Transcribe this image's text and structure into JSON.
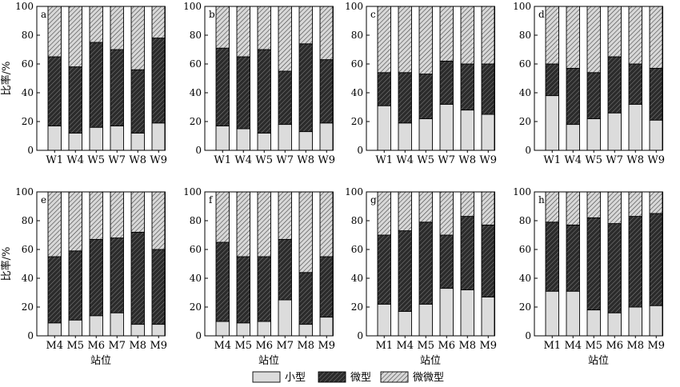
{
  "colors": {
    "small": "#dcdcdc",
    "micro": "#2b2b2b",
    "pico": "#b8b8b8",
    "axis": "#000000"
  },
  "legend": {
    "placement": "bottom-center",
    "items": [
      {
        "key": "small",
        "label": "小型"
      },
      {
        "key": "micro",
        "label": "微型"
      },
      {
        "key": "pico",
        "label": "微微型"
      }
    ]
  },
  "ylabel": "比率/%",
  "xlabel": "站位",
  "chart_data": [
    {
      "type": "bar",
      "stacked": true,
      "panel_label": "a",
      "ylim": [
        0,
        100
      ],
      "yticks": [
        0,
        20,
        40,
        60,
        80,
        100
      ],
      "categories": [
        "W1",
        "W4",
        "W5",
        "W7",
        "W8",
        "W9"
      ],
      "series": [
        {
          "name": "小型",
          "values": [
            17,
            12,
            16,
            17,
            12,
            19
          ]
        },
        {
          "name": "微型",
          "values": [
            48,
            46,
            59,
            53,
            44,
            59
          ]
        },
        {
          "name": "微微型",
          "values": [
            35,
            42,
            25,
            30,
            44,
            22
          ]
        }
      ]
    },
    {
      "type": "bar",
      "stacked": true,
      "panel_label": "b",
      "ylim": [
        0,
        100
      ],
      "yticks": [
        0,
        20,
        40,
        60,
        80,
        100
      ],
      "categories": [
        "W1",
        "W4",
        "W5",
        "W7",
        "W8",
        "W9"
      ],
      "series": [
        {
          "name": "小型",
          "values": [
            17,
            15,
            12,
            18,
            13,
            19
          ]
        },
        {
          "name": "微型",
          "values": [
            54,
            50,
            58,
            37,
            61,
            44
          ]
        },
        {
          "name": "微微型",
          "values": [
            29,
            35,
            30,
            45,
            26,
            37
          ]
        }
      ]
    },
    {
      "type": "bar",
      "stacked": true,
      "panel_label": "c",
      "ylim": [
        0,
        100
      ],
      "yticks": [
        0,
        20,
        40,
        60,
        80,
        100
      ],
      "categories": [
        "W1",
        "W4",
        "W5",
        "W7",
        "W8",
        "W9"
      ],
      "series": [
        {
          "name": "小型",
          "values": [
            31,
            19,
            22,
            32,
            28,
            25
          ]
        },
        {
          "name": "微型",
          "values": [
            23,
            35,
            31,
            30,
            32,
            35
          ]
        },
        {
          "name": "微微型",
          "values": [
            46,
            46,
            47,
            38,
            40,
            40
          ]
        }
      ]
    },
    {
      "type": "bar",
      "stacked": true,
      "panel_label": "d",
      "ylim": [
        0,
        100
      ],
      "yticks": [
        0,
        20,
        40,
        60,
        80,
        100
      ],
      "categories": [
        "W1",
        "W4",
        "W5",
        "W7",
        "W8",
        "W9"
      ],
      "series": [
        {
          "name": "小型",
          "values": [
            38,
            18,
            22,
            26,
            32,
            21
          ]
        },
        {
          "name": "微型",
          "values": [
            22,
            39,
            32,
            39,
            28,
            36
          ]
        },
        {
          "name": "微微型",
          "values": [
            40,
            43,
            46,
            35,
            40,
            43
          ]
        }
      ]
    },
    {
      "type": "bar",
      "stacked": true,
      "panel_label": "e",
      "ylim": [
        0,
        100
      ],
      "yticks": [
        0,
        20,
        40,
        60,
        80,
        100
      ],
      "categories": [
        "M4",
        "M5",
        "M6",
        "M7",
        "M8",
        "M9"
      ],
      "series": [
        {
          "name": "小型",
          "values": [
            9,
            11,
            14,
            16,
            8,
            8
          ]
        },
        {
          "name": "微型",
          "values": [
            46,
            48,
            53,
            52,
            64,
            52
          ]
        },
        {
          "name": "微微型",
          "values": [
            45,
            41,
            33,
            32,
            28,
            40
          ]
        }
      ]
    },
    {
      "type": "bar",
      "stacked": true,
      "panel_label": "f",
      "ylim": [
        0,
        100
      ],
      "yticks": [
        0,
        20,
        40,
        60,
        80,
        100
      ],
      "categories": [
        "M4",
        "M5",
        "M6",
        "M7",
        "M8",
        "M9"
      ],
      "series": [
        {
          "name": "小型",
          "values": [
            10,
            9,
            10,
            25,
            8,
            13
          ]
        },
        {
          "name": "微型",
          "values": [
            55,
            46,
            45,
            42,
            36,
            42
          ]
        },
        {
          "name": "微微型",
          "values": [
            35,
            45,
            45,
            33,
            56,
            45
          ]
        }
      ]
    },
    {
      "type": "bar",
      "stacked": true,
      "panel_label": "g",
      "ylim": [
        0,
        100
      ],
      "yticks": [
        0,
        20,
        40,
        60,
        80,
        100
      ],
      "categories": [
        "M1",
        "M4",
        "M5",
        "M6",
        "M8",
        "M9"
      ],
      "series": [
        {
          "name": "小型",
          "values": [
            22,
            17,
            22,
            33,
            32,
            27
          ]
        },
        {
          "name": "微型",
          "values": [
            48,
            56,
            57,
            37,
            51,
            50
          ]
        },
        {
          "name": "微微型",
          "values": [
            30,
            27,
            21,
            30,
            17,
            23
          ]
        }
      ]
    },
    {
      "type": "bar",
      "stacked": true,
      "panel_label": "h",
      "ylim": [
        0,
        100
      ],
      "yticks": [
        0,
        20,
        40,
        60,
        80,
        100
      ],
      "categories": [
        "M1",
        "M4",
        "M5",
        "M6",
        "M8",
        "M9"
      ],
      "series": [
        {
          "name": "小型",
          "values": [
            31,
            31,
            18,
            16,
            20,
            21
          ]
        },
        {
          "name": "微型",
          "values": [
            48,
            46,
            64,
            62,
            63,
            64
          ]
        },
        {
          "name": "微微型",
          "values": [
            21,
            23,
            18,
            22,
            17,
            15
          ]
        }
      ]
    }
  ]
}
